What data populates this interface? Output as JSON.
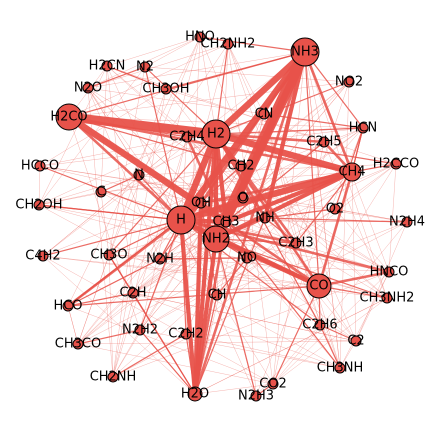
{
  "colors": {
    "node_fill": "#e8524a",
    "edge": "#e8524a",
    "node_stroke": "#000000",
    "label": "#000000"
  },
  "nodes": [
    {
      "id": "HNO",
      "label": "HNO"
    },
    {
      "id": "CH2NH2",
      "label": "CH2NH2"
    },
    {
      "id": "NH3",
      "label": "NH3"
    },
    {
      "id": "H2CN",
      "label": "H2CN"
    },
    {
      "id": "N2",
      "label": "N2"
    },
    {
      "id": "NO2",
      "label": "NO2"
    },
    {
      "id": "N2O",
      "label": "N2O"
    },
    {
      "id": "CH3OH",
      "label": "CH3OH"
    },
    {
      "id": "H2CO",
      "label": "H2CO"
    },
    {
      "id": "CN",
      "label": "CN"
    },
    {
      "id": "HCN",
      "label": "HCN"
    },
    {
      "id": "C2H4",
      "label": "C2H4"
    },
    {
      "id": "H2",
      "label": "H2"
    },
    {
      "id": "C2H5",
      "label": "C2H5"
    },
    {
      "id": "HCCO",
      "label": "HCCO"
    },
    {
      "id": "CH2",
      "label": "CH2"
    },
    {
      "id": "H2CCO",
      "label": "H2CCO"
    },
    {
      "id": "C",
      "label": "C"
    },
    {
      "id": "CH4",
      "label": "CH4"
    },
    {
      "id": "N",
      "label": "N"
    },
    {
      "id": "CH2OH",
      "label": "CH2OH"
    },
    {
      "id": "O",
      "label": "O"
    },
    {
      "id": "OH",
      "label": "OH"
    },
    {
      "id": "O2",
      "label": "O2"
    },
    {
      "id": "H",
      "label": "H"
    },
    {
      "id": "CH3",
      "label": "CH3"
    },
    {
      "id": "NH",
      "label": "NH"
    },
    {
      "id": "N2H4",
      "label": "N2H4"
    },
    {
      "id": "NH2",
      "label": "NH2"
    },
    {
      "id": "C2H3",
      "label": "C2H3"
    },
    {
      "id": "C4H2",
      "label": "C4H2"
    },
    {
      "id": "CH3O",
      "label": "CH3O"
    },
    {
      "id": "N2H",
      "label": "N2H"
    },
    {
      "id": "NO",
      "label": "NO"
    },
    {
      "id": "HNCO",
      "label": "HNCO"
    },
    {
      "id": "CO",
      "label": "CO"
    },
    {
      "id": "C2H",
      "label": "C2H"
    },
    {
      "id": "CH",
      "label": "CH"
    },
    {
      "id": "CH3NH2",
      "label": "CH3NH2"
    },
    {
      "id": "HCO",
      "label": "HCO"
    },
    {
      "id": "N2H2",
      "label": "N2H2"
    },
    {
      "id": "C2H2",
      "label": "C2H2"
    },
    {
      "id": "C2H6",
      "label": "C2H6"
    },
    {
      "id": "CH3CO",
      "label": "CH3CO"
    },
    {
      "id": "C2",
      "label": "C2"
    },
    {
      "id": "CH3NH",
      "label": "CH3NH"
    },
    {
      "id": "CH2NH",
      "label": "CH2NH"
    },
    {
      "id": "CO2",
      "label": "CO2"
    },
    {
      "id": "H2O",
      "label": "H2O"
    },
    {
      "id": "N2H3",
      "label": "N2H3"
    }
  ],
  "edges": [
    [
      "H2CO",
      "H2",
      5
    ],
    [
      "H2CO",
      "CH3",
      4
    ],
    [
      "H2CO",
      "CH4",
      2
    ],
    [
      "H2CO",
      "NH3",
      1
    ],
    [
      "H2CO",
      "H",
      2
    ],
    [
      "H2CO",
      "C2H4",
      1
    ],
    [
      "H2CO",
      "CH2",
      1
    ],
    [
      "NH3",
      "H2",
      4
    ],
    [
      "NH3",
      "NH2",
      6
    ],
    [
      "NH3",
      "H",
      4
    ],
    [
      "NH3",
      "CH3",
      4
    ],
    [
      "NH3",
      "NH",
      3
    ],
    [
      "NH3",
      "CH4",
      2
    ],
    [
      "NH3",
      "HCN",
      1
    ],
    [
      "NH3",
      "CN",
      1
    ],
    [
      "NH3",
      "OH",
      2
    ],
    [
      "NH3",
      "H2O",
      2
    ],
    [
      "NH3",
      "CO",
      1
    ],
    [
      "NH3",
      "CH3OH",
      1
    ],
    [
      "H2",
      "H",
      4
    ],
    [
      "H2",
      "CH4",
      4
    ],
    [
      "H2",
      "C2H5",
      2
    ],
    [
      "H2",
      "C2H4",
      2
    ],
    [
      "H2",
      "CH3",
      3
    ],
    [
      "H2",
      "NH2",
      3
    ],
    [
      "H2",
      "OH",
      2
    ],
    [
      "H2",
      "H2O",
      3
    ],
    [
      "H2",
      "CO",
      2
    ],
    [
      "H2",
      "C2H3",
      2
    ],
    [
      "H2",
      "HCN",
      1
    ],
    [
      "H2",
      "CH2",
      1
    ],
    [
      "H2",
      "NH",
      2
    ],
    [
      "H2",
      "N2",
      1
    ],
    [
      "H2",
      "CH2NH2",
      1
    ],
    [
      "H2",
      "C2H6",
      1
    ],
    [
      "H2",
      "H2CCO",
      1
    ],
    [
      "H2",
      "CH3O",
      1
    ],
    [
      "H",
      "CH4",
      4
    ],
    [
      "H",
      "CO",
      3
    ],
    [
      "H",
      "H2O",
      3
    ],
    [
      "H",
      "OH",
      3
    ],
    [
      "H",
      "NH2",
      3
    ],
    [
      "H",
      "CH3",
      3
    ],
    [
      "H",
      "HCO",
      2
    ],
    [
      "H",
      "HNCO",
      2
    ],
    [
      "H",
      "C2H3",
      2
    ],
    [
      "H",
      "N2H",
      1
    ],
    [
      "H",
      "CH2",
      1
    ],
    [
      "H",
      "N",
      1
    ],
    [
      "H",
      "O",
      2
    ],
    [
      "H",
      "C2H2",
      1
    ],
    [
      "H",
      "N2H2",
      1
    ],
    [
      "H",
      "CH3O",
      1
    ],
    [
      "H",
      "C2H6",
      1
    ],
    [
      "CH4",
      "CH3",
      3
    ],
    [
      "CH4",
      "C2H5",
      2
    ],
    [
      "CH4",
      "NH2",
      3
    ],
    [
      "CH4",
      "OH",
      2
    ],
    [
      "CH4",
      "CO",
      2
    ],
    [
      "CH4",
      "HCN",
      1
    ],
    [
      "CH4",
      "C2H3",
      1
    ],
    [
      "NH2",
      "CO",
      3
    ],
    [
      "NH2",
      "H2O",
      3
    ],
    [
      "NH2",
      "NH",
      2
    ],
    [
      "NH2",
      "C2H3",
      1
    ],
    [
      "NH2",
      "NO",
      1
    ],
    [
      "NH2",
      "N2H3",
      1
    ],
    [
      "NH2",
      "CH3NH2",
      1
    ],
    [
      "CH3",
      "CO",
      2
    ],
    [
      "CH3",
      "H2O",
      2
    ],
    [
      "CH3",
      "C2H4",
      2
    ],
    [
      "CH3",
      "CH3NH",
      1
    ],
    [
      "CH3",
      "O",
      1
    ],
    [
      "CO",
      "HNCO",
      2
    ],
    [
      "CO",
      "CH3NH2",
      1
    ],
    [
      "CO",
      "C2H6",
      1
    ],
    [
      "CO",
      "HCO",
      1
    ],
    [
      "CO",
      "CO2",
      1
    ],
    [
      "OH",
      "H2O",
      3
    ],
    [
      "OH",
      "O",
      1
    ],
    [
      "OH",
      "CH",
      1
    ],
    [
      "OH",
      "HCO",
      1
    ],
    [
      "H2O",
      "CH",
      1
    ],
    [
      "H2O",
      "C2H",
      1
    ],
    [
      "H2O",
      "N2H2",
      1
    ],
    [
      "H2O",
      "NH",
      1
    ],
    [
      "HCO",
      "OH",
      1
    ],
    [
      "HCO",
      "C2H",
      1
    ],
    [
      "HCO",
      "N2H",
      1
    ],
    [
      "HCN",
      "CN",
      1
    ],
    [
      "HCN",
      "CH4",
      1
    ],
    [
      "HCN",
      "O2",
      1
    ],
    [
      "C2H5",
      "CH3",
      1
    ],
    [
      "C2H3",
      "NH",
      1
    ],
    [
      "CH3O",
      "H2O",
      1
    ],
    [
      "H2CCO",
      "CH4",
      1
    ],
    [
      "N2H4",
      "NH",
      1
    ],
    [
      "C4H2",
      "H",
      1
    ],
    [
      "CH2OH",
      "H",
      1
    ],
    [
      "HCCO",
      "H",
      1
    ],
    [
      "C",
      "N",
      1
    ],
    [
      "N2O",
      "N2",
      1
    ],
    [
      "NO2",
      "H2",
      1
    ],
    [
      "H2CN",
      "CH3OH",
      1
    ],
    [
      "HNO",
      "NH3",
      1
    ],
    [
      "C2H2",
      "H2O",
      1
    ],
    [
      "CO2",
      "N2H3",
      1
    ],
    [
      "CH3CO",
      "N2H2",
      1
    ],
    [
      "CH2NH",
      "C2H2",
      1
    ],
    [
      "C2",
      "C2H6",
      1
    ],
    [
      "CH3NH",
      "C2H6",
      1
    ],
    [
      "NO",
      "CH",
      1
    ],
    [
      "O2",
      "NH",
      1
    ],
    [
      "C2H",
      "CH3O",
      1
    ],
    [
      "N2H",
      "NO",
      1
    ],
    [
      "OH",
      "N2H",
      1
    ],
    [
      "H",
      "N2",
      1
    ],
    [
      "H",
      "CH2OH",
      1
    ]
  ]
}
